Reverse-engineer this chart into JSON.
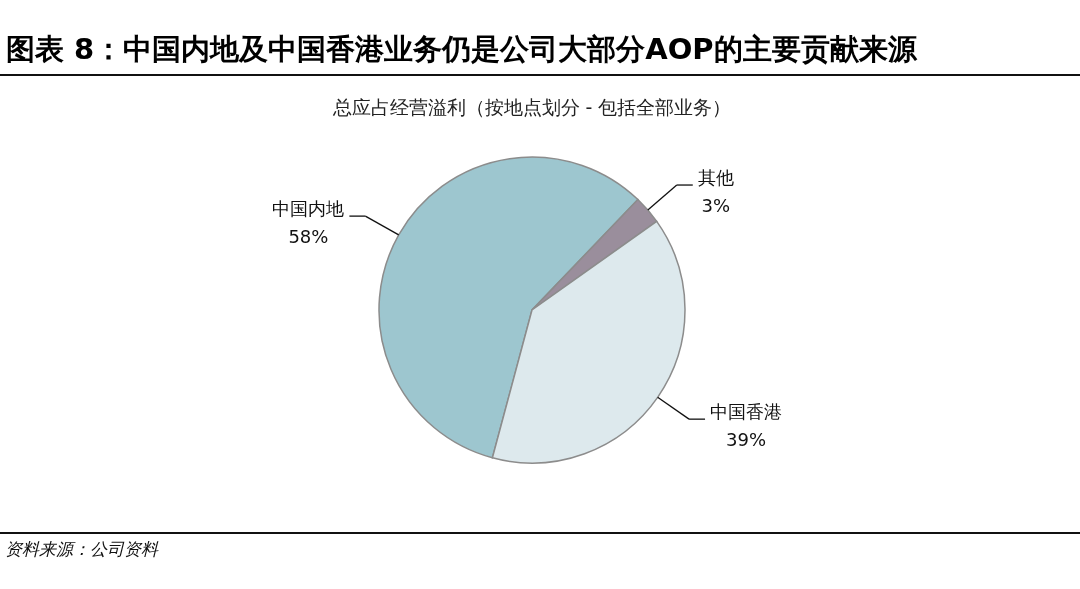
{
  "chart_data": {
    "type": "pie",
    "title": "图表 8：中国内地及中国香港业务仍是公司大部分AOP的主要贡献来源",
    "subtitle": "总应占经营溢利（按地点划分 - 包括全部业务）",
    "categories": [
      "中国内地",
      "其他",
      "中国香港"
    ],
    "values": [
      58,
      3,
      39
    ],
    "colors": [
      "#9dc6cf",
      "#9a8e9c",
      "#dde9ed"
    ],
    "value_labels": [
      "58%",
      "3%",
      "39%"
    ],
    "annotations": [
      "资料来源：公司资料"
    ]
  }
}
